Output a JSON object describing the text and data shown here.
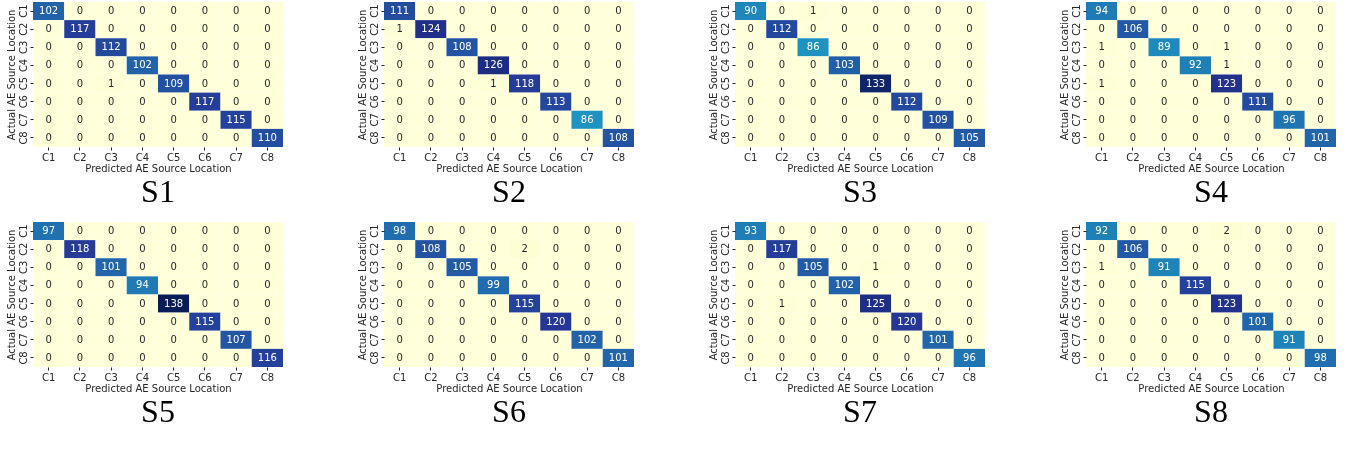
{
  "chart_data": [
    {
      "type": "heatmap",
      "title": "S1",
      "xlabel": "Predicted AE Source Location",
      "ylabel": "Actual AE Source Location",
      "data_labels": true,
      "categories": [
        "C1",
        "C2",
        "C3",
        "C4",
        "C5",
        "C6",
        "C7",
        "C8"
      ],
      "y_categories": [
        "C1",
        "C2",
        "C3",
        "C4",
        "C5",
        "C6",
        "C7",
        "C8"
      ],
      "cells": [
        [
          102,
          0,
          0,
          0,
          0,
          0,
          0,
          0
        ],
        [
          0,
          117,
          0,
          0,
          0,
          0,
          0,
          0
        ],
        [
          0,
          0,
          112,
          0,
          0,
          0,
          0,
          0
        ],
        [
          0,
          0,
          0,
          102,
          0,
          0,
          0,
          0
        ],
        [
          0,
          0,
          1,
          0,
          109,
          0,
          0,
          0
        ],
        [
          0,
          0,
          0,
          0,
          0,
          117,
          0,
          0
        ],
        [
          0,
          0,
          0,
          0,
          0,
          0,
          115,
          0
        ],
        [
          0,
          0,
          0,
          0,
          0,
          0,
          0,
          110
        ]
      ]
    },
    {
      "type": "heatmap",
      "title": "S2",
      "xlabel": "Predicted AE Source Location",
      "ylabel": "Actual AE Source Location",
      "data_labels": true,
      "categories": [
        "C1",
        "C2",
        "C3",
        "C4",
        "C5",
        "C6",
        "C7",
        "C8"
      ],
      "y_categories": [
        "C1",
        "C2",
        "C3",
        "C4",
        "C5",
        "C6",
        "C7",
        "C8"
      ],
      "cells": [
        [
          111,
          0,
          0,
          0,
          0,
          0,
          0,
          0
        ],
        [
          1,
          124,
          0,
          0,
          0,
          0,
          0,
          0
        ],
        [
          0,
          0,
          108,
          0,
          0,
          0,
          0,
          0
        ],
        [
          0,
          0,
          0,
          126,
          0,
          0,
          0,
          0
        ],
        [
          0,
          0,
          0,
          1,
          118,
          0,
          0,
          0
        ],
        [
          0,
          0,
          0,
          0,
          0,
          113,
          0,
          0
        ],
        [
          0,
          0,
          0,
          0,
          0,
          0,
          86,
          0
        ],
        [
          0,
          0,
          0,
          0,
          0,
          0,
          0,
          108
        ]
      ]
    },
    {
      "type": "heatmap",
      "title": "S3",
      "xlabel": "Predicted AE Source Location",
      "ylabel": "Actual AE Source Location",
      "data_labels": true,
      "categories": [
        "C1",
        "C2",
        "C3",
        "C4",
        "C5",
        "C6",
        "C7",
        "C8"
      ],
      "y_categories": [
        "C1",
        "C2",
        "C3",
        "C4",
        "C5",
        "C6",
        "C7",
        "C8"
      ],
      "cells": [
        [
          90,
          0,
          1,
          0,
          0,
          0,
          0,
          0
        ],
        [
          0,
          112,
          0,
          0,
          0,
          0,
          0,
          0
        ],
        [
          0,
          0,
          86,
          0,
          0,
          0,
          0,
          0
        ],
        [
          0,
          0,
          0,
          103,
          0,
          0,
          0,
          0
        ],
        [
          0,
          0,
          0,
          0,
          133,
          0,
          0,
          0
        ],
        [
          0,
          0,
          0,
          0,
          0,
          112,
          0,
          0
        ],
        [
          0,
          0,
          0,
          0,
          0,
          0,
          109,
          0
        ],
        [
          0,
          0,
          0,
          0,
          0,
          0,
          0,
          105
        ]
      ]
    },
    {
      "type": "heatmap",
      "title": "S4",
      "xlabel": "Predicted AE Source Location",
      "ylabel": "Actual AE Source Location",
      "data_labels": true,
      "categories": [
        "C1",
        "C2",
        "C3",
        "C4",
        "C5",
        "C6",
        "C7",
        "C8"
      ],
      "y_categories": [
        "C1",
        "C2",
        "C3",
        "C4",
        "C5",
        "C6",
        "C7",
        "C8"
      ],
      "cells": [
        [
          94,
          0,
          0,
          0,
          0,
          0,
          0,
          0
        ],
        [
          0,
          106,
          0,
          0,
          0,
          0,
          0,
          0
        ],
        [
          1,
          0,
          89,
          0,
          1,
          0,
          0,
          0
        ],
        [
          0,
          0,
          0,
          92,
          1,
          0,
          0,
          0
        ],
        [
          1,
          0,
          0,
          0,
          123,
          0,
          0,
          0
        ],
        [
          0,
          0,
          0,
          0,
          0,
          111,
          0,
          0
        ],
        [
          0,
          0,
          0,
          0,
          0,
          0,
          96,
          0
        ],
        [
          0,
          0,
          0,
          0,
          0,
          0,
          0,
          101
        ]
      ]
    },
    {
      "type": "heatmap",
      "title": "S5",
      "xlabel": "Predicted AE Source Location",
      "ylabel": "Actual AE Source Location",
      "data_labels": true,
      "categories": [
        "C1",
        "C2",
        "C3",
        "C4",
        "C5",
        "C6",
        "C7",
        "C8"
      ],
      "y_categories": [
        "C1",
        "C2",
        "C3",
        "C4",
        "C5",
        "C6",
        "C7",
        "C8"
      ],
      "cells": [
        [
          97,
          0,
          0,
          0,
          0,
          0,
          0,
          0
        ],
        [
          0,
          118,
          0,
          0,
          0,
          0,
          0,
          0
        ],
        [
          0,
          0,
          101,
          0,
          0,
          0,
          0,
          0
        ],
        [
          0,
          0,
          0,
          94,
          0,
          0,
          0,
          0
        ],
        [
          0,
          0,
          0,
          0,
          138,
          0,
          0,
          0
        ],
        [
          0,
          0,
          0,
          0,
          0,
          115,
          0,
          0
        ],
        [
          0,
          0,
          0,
          0,
          0,
          0,
          107,
          0
        ],
        [
          0,
          0,
          0,
          0,
          0,
          0,
          0,
          116
        ]
      ]
    },
    {
      "type": "heatmap",
      "title": "S6",
      "xlabel": "Predicted AE Source Location",
      "ylabel": "Actual AE Source Location",
      "data_labels": true,
      "categories": [
        "C1",
        "C2",
        "C3",
        "C4",
        "C5",
        "C6",
        "C7",
        "C8"
      ],
      "y_categories": [
        "C1",
        "C2",
        "C3",
        "C4",
        "C5",
        "C6",
        "C7",
        "C8"
      ],
      "cells": [
        [
          98,
          0,
          0,
          0,
          0,
          0,
          0,
          0
        ],
        [
          0,
          108,
          0,
          0,
          2,
          0,
          0,
          0
        ],
        [
          0,
          0,
          105,
          0,
          0,
          0,
          0,
          0
        ],
        [
          0,
          0,
          0,
          99,
          0,
          0,
          0,
          0
        ],
        [
          0,
          0,
          0,
          0,
          115,
          0,
          0,
          0
        ],
        [
          0,
          0,
          0,
          0,
          0,
          120,
          0,
          0
        ],
        [
          0,
          0,
          0,
          0,
          0,
          0,
          102,
          0
        ],
        [
          0,
          0,
          0,
          0,
          0,
          0,
          0,
          101
        ]
      ]
    },
    {
      "type": "heatmap",
      "title": "S7",
      "xlabel": "Predicted AE Source Location",
      "ylabel": "Actual AE Source Location",
      "data_labels": true,
      "categories": [
        "C1",
        "C2",
        "C3",
        "C4",
        "C5",
        "C6",
        "C7",
        "C8"
      ],
      "y_categories": [
        "C1",
        "C2",
        "C3",
        "C4",
        "C5",
        "C6",
        "C7",
        "C8"
      ],
      "cells": [
        [
          93,
          0,
          0,
          0,
          0,
          0,
          0,
          0
        ],
        [
          0,
          117,
          0,
          0,
          0,
          0,
          0,
          0
        ],
        [
          0,
          0,
          105,
          0,
          1,
          0,
          0,
          0
        ],
        [
          0,
          0,
          0,
          102,
          0,
          0,
          0,
          0
        ],
        [
          0,
          1,
          0,
          0,
          125,
          0,
          0,
          0
        ],
        [
          0,
          0,
          0,
          0,
          0,
          120,
          0,
          0
        ],
        [
          0,
          0,
          0,
          0,
          0,
          0,
          101,
          0
        ],
        [
          0,
          0,
          0,
          0,
          0,
          0,
          0,
          96
        ]
      ]
    },
    {
      "type": "heatmap",
      "title": "S8",
      "xlabel": "Predicted AE Source Location",
      "ylabel": "Actual AE Source Location",
      "data_labels": true,
      "categories": [
        "C1",
        "C2",
        "C3",
        "C4",
        "C5",
        "C6",
        "C7",
        "C8"
      ],
      "y_categories": [
        "C1",
        "C2",
        "C3",
        "C4",
        "C5",
        "C6",
        "C7",
        "C8"
      ],
      "cells": [
        [
          92,
          0,
          0,
          0,
          2,
          0,
          0,
          0
        ],
        [
          0,
          106,
          0,
          0,
          0,
          0,
          0,
          0
        ],
        [
          1,
          0,
          91,
          0,
          0,
          0,
          0,
          0
        ],
        [
          0,
          0,
          0,
          115,
          0,
          0,
          0,
          0
        ],
        [
          0,
          0,
          0,
          0,
          123,
          0,
          0,
          0
        ],
        [
          0,
          0,
          0,
          0,
          0,
          101,
          0,
          0
        ],
        [
          0,
          0,
          0,
          0,
          0,
          0,
          91,
          0
        ],
        [
          0,
          0,
          0,
          0,
          0,
          0,
          0,
          98
        ]
      ]
    }
  ]
}
